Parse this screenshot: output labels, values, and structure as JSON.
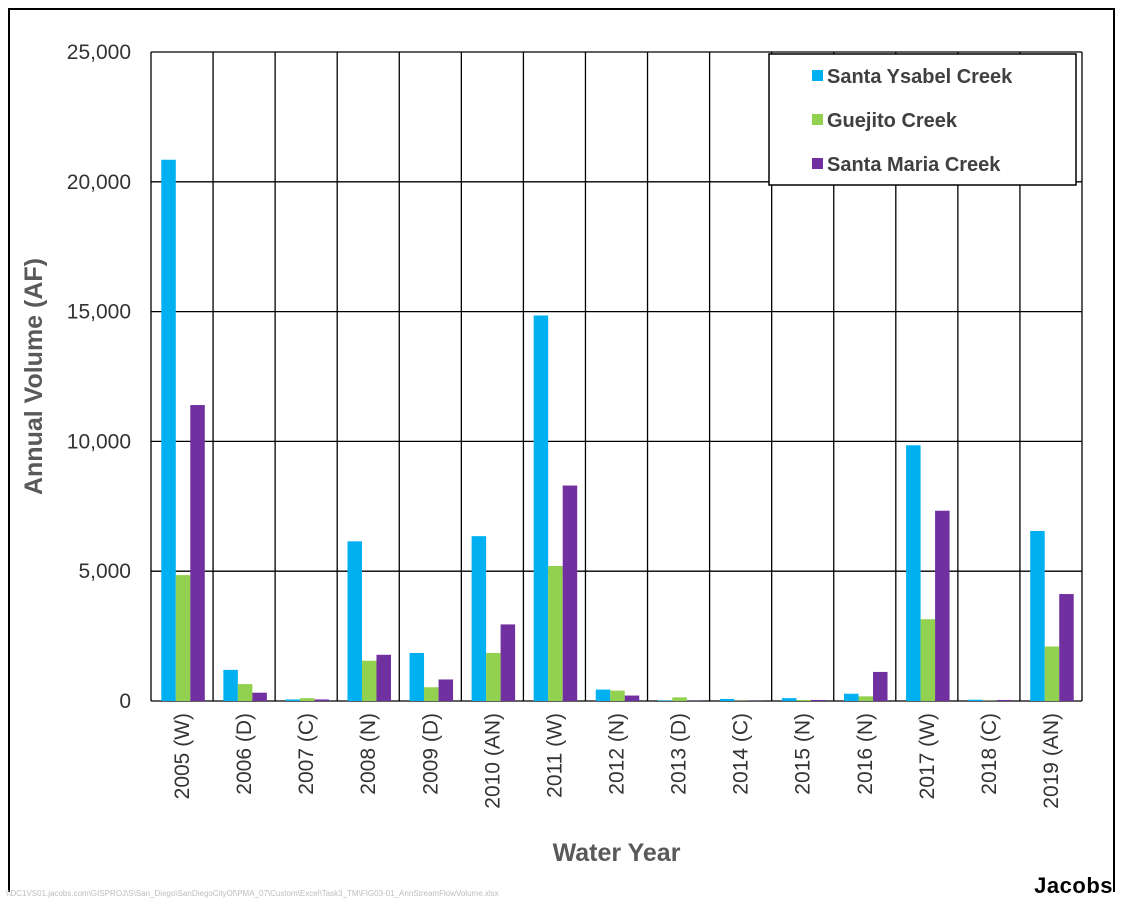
{
  "chart_data": {
    "type": "bar",
    "xlabel": "Water Year",
    "ylabel": "Annual Volume (AF)",
    "ylim": [
      0,
      25000
    ],
    "yticks": [
      0,
      5000,
      10000,
      15000,
      20000,
      25000
    ],
    "ytick_labels": [
      "0",
      "5,000",
      "10,000",
      "15,000",
      "20,000",
      "25,000"
    ],
    "grid": true,
    "legend_position": "top-right",
    "categories": [
      "2005 (W)",
      "2006 (D)",
      "2007 (C)",
      "2008 (N)",
      "2009 (D)",
      "2010 (AN)",
      "2011 (W)",
      "2012 (N)",
      "2013 (D)",
      "2014 (C)",
      "2015 (N)",
      "2016 (N)",
      "2017 (W)",
      "2018 (C)",
      "2019 (AN)"
    ],
    "series": [
      {
        "name": "Santa Ysabel Creek",
        "color": "#00B0F0",
        "values": [
          20850,
          1200,
          60,
          6150,
          1850,
          6350,
          14850,
          440,
          20,
          80,
          110,
          280,
          9850,
          50,
          6550
        ]
      },
      {
        "name": "Guejito Creek",
        "color": "#92D050",
        "values": [
          4850,
          650,
          110,
          1550,
          530,
          1850,
          5200,
          400,
          140,
          10,
          40,
          180,
          3150,
          10,
          2100
        ]
      },
      {
        "name": "Santa Maria Creek",
        "color": "#7030A0",
        "values": [
          11400,
          320,
          60,
          1780,
          830,
          2950,
          8300,
          210,
          10,
          10,
          40,
          1120,
          7330,
          40,
          4120
        ]
      }
    ]
  },
  "footer": {
    "path": "\\\\DC1VS01.jacobs.com\\GISPROJ\\S\\San_Diego\\SanDiegoCityOf\\PMA_07\\Custom\\Excel\\Task3_TM\\FIG03-01_AnnStreamFlowVolume.xlsx",
    "logo": "Jacobs"
  }
}
